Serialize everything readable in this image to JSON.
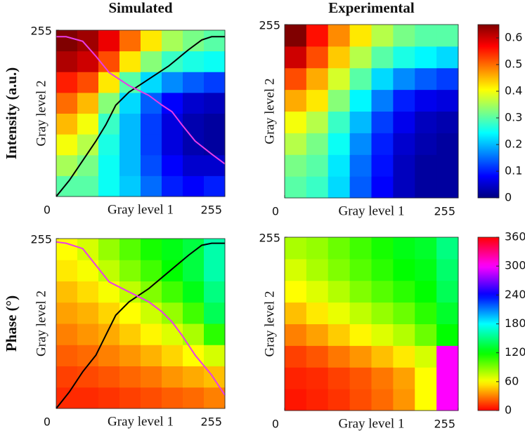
{
  "chart_data": [
    {
      "type": "heatmap",
      "title": "Simulated",
      "row_label": "Intensity (a.u.)",
      "xlabel": "Gray level 1",
      "ylabel": "Gray level 2",
      "xlim": [
        0,
        255
      ],
      "ylim": [
        0,
        255
      ],
      "xticks": [
        0,
        255
      ],
      "yticks": [
        255
      ],
      "colormap": "jet",
      "clim": [
        0,
        0.65
      ],
      "z": [
        [
          0.3,
          0.3,
          0.25,
          0.21,
          0.15,
          0.1,
          0.08,
          0.1
        ],
        [
          0.35,
          0.32,
          0.25,
          0.2,
          0.13,
          0.08,
          0.05,
          0.05
        ],
        [
          0.4,
          0.36,
          0.26,
          0.2,
          0.12,
          0.06,
          0.03,
          0.02
        ],
        [
          0.45,
          0.4,
          0.28,
          0.2,
          0.12,
          0.06,
          0.03,
          0.02
        ],
        [
          0.5,
          0.45,
          0.33,
          0.22,
          0.14,
          0.08,
          0.05,
          0.04
        ],
        [
          0.55,
          0.52,
          0.42,
          0.3,
          0.22,
          0.17,
          0.14,
          0.12
        ],
        [
          0.62,
          0.6,
          0.52,
          0.42,
          0.33,
          0.28,
          0.26,
          0.25
        ],
        [
          0.65,
          0.63,
          0.58,
          0.5,
          0.42,
          0.35,
          0.32,
          0.3
        ]
      ],
      "series": [
        {
          "color": "#000000",
          "x": [
            0,
            20,
            40,
            60,
            75,
            90,
            110,
            140,
            170,
            200,
            220,
            235,
            255
          ],
          "y": [
            0,
            25,
            55,
            85,
            110,
            140,
            160,
            180,
            200,
            225,
            240,
            245,
            245
          ]
        },
        {
          "color": "#e83ce8",
          "x": [
            0,
            15,
            40,
            60,
            80,
            110,
            140,
            160,
            175,
            190,
            210,
            235,
            255
          ],
          "y": [
            245,
            245,
            238,
            215,
            190,
            170,
            155,
            140,
            130,
            110,
            85,
            65,
            50
          ]
        }
      ]
    },
    {
      "type": "heatmap",
      "title": "Experimental",
      "xlim": [
        0,
        255
      ],
      "ylim": [
        0,
        255
      ],
      "xticks": [
        0,
        255
      ],
      "yticks": [
        255
      ],
      "xlabel": "Gray level 1",
      "ylabel": "Gray level 2",
      "colormap": "jet",
      "clim": [
        0,
        0.65
      ],
      "z": [
        [
          0.3,
          0.28,
          0.22,
          0.14,
          0.08,
          0.04,
          0.02,
          0.02
        ],
        [
          0.32,
          0.3,
          0.23,
          0.15,
          0.09,
          0.04,
          0.02,
          0.02
        ],
        [
          0.36,
          0.32,
          0.25,
          0.17,
          0.1,
          0.05,
          0.03,
          0.02
        ],
        [
          0.4,
          0.36,
          0.28,
          0.2,
          0.12,
          0.07,
          0.04,
          0.03
        ],
        [
          0.46,
          0.42,
          0.33,
          0.24,
          0.16,
          0.1,
          0.07,
          0.06
        ],
        [
          0.52,
          0.46,
          0.38,
          0.3,
          0.22,
          0.17,
          0.14,
          0.12
        ],
        [
          0.6,
          0.52,
          0.44,
          0.36,
          0.3,
          0.26,
          0.24,
          0.22
        ],
        [
          0.65,
          0.56,
          0.48,
          0.42,
          0.36,
          0.32,
          0.3,
          0.3
        ]
      ],
      "colorbar_ticks": [
        0,
        0.1,
        0.2,
        0.3,
        0.4,
        0.5,
        0.6
      ]
    },
    {
      "type": "heatmap",
      "row_label": "Phase (°)",
      "xlabel": "Gray level 1",
      "ylabel": "Gray level 2",
      "xlim": [
        0,
        255
      ],
      "ylim": [
        0,
        255
      ],
      "xticks": [
        0,
        255
      ],
      "yticks": [
        255
      ],
      "colormap": "hsv",
      "clim": [
        0,
        360
      ],
      "z": [
        [
          10,
          10,
          12,
          15,
          18,
          22,
          25,
          30
        ],
        [
          15,
          17,
          20,
          24,
          28,
          35,
          40,
          45
        ],
        [
          22,
          25,
          30,
          35,
          42,
          50,
          60,
          70
        ],
        [
          30,
          35,
          40,
          48,
          58,
          68,
          80,
          110
        ],
        [
          38,
          42,
          50,
          60,
          72,
          85,
          105,
          140
        ],
        [
          45,
          52,
          62,
          75,
          90,
          105,
          125,
          150
        ],
        [
          55,
          62,
          75,
          90,
          105,
          120,
          135,
          160
        ],
        [
          60,
          70,
          85,
          100,
          115,
          125,
          135,
          160
        ]
      ],
      "series": [
        {
          "color": "#000000",
          "x": [
            0,
            20,
            40,
            60,
            75,
            90,
            110,
            140,
            170,
            200,
            220,
            235,
            255
          ],
          "y": [
            0,
            25,
            55,
            80,
            110,
            140,
            160,
            180,
            205,
            230,
            245,
            248,
            248
          ]
        },
        {
          "color": "#e83ce8",
          "x": [
            0,
            15,
            40,
            60,
            80,
            110,
            140,
            160,
            175,
            190,
            210,
            235,
            255
          ],
          "y": [
            250,
            248,
            240,
            215,
            190,
            175,
            160,
            145,
            130,
            110,
            80,
            50,
            20
          ]
        }
      ]
    },
    {
      "type": "heatmap",
      "xlabel": "Gray level 1",
      "ylabel": "Gray level 2",
      "xlim": [
        0,
        255
      ],
      "ylim": [
        0,
        255
      ],
      "xticks": [
        0,
        255
      ],
      "yticks": [
        255
      ],
      "colormap": "hsv",
      "clim": [
        0,
        360
      ],
      "z": [
        [
          5,
          8,
          12,
          18,
          25,
          35,
          60,
          300
        ],
        [
          8,
          10,
          15,
          20,
          28,
          38,
          60,
          300
        ],
        [
          15,
          20,
          28,
          35,
          45,
          55,
          70,
          300
        ],
        [
          30,
          38,
          48,
          58,
          68,
          78,
          95,
          120
        ],
        [
          45,
          55,
          65,
          75,
          85,
          95,
          110,
          130
        ],
        [
          60,
          68,
          78,
          90,
          100,
          110,
          120,
          140
        ],
        [
          70,
          80,
          90,
          100,
          110,
          120,
          125,
          145
        ],
        [
          80,
          85,
          95,
          105,
          115,
          125,
          130,
          150
        ]
      ],
      "colorbar_ticks": [
        0,
        60,
        120,
        180,
        240,
        300,
        360
      ]
    }
  ]
}
